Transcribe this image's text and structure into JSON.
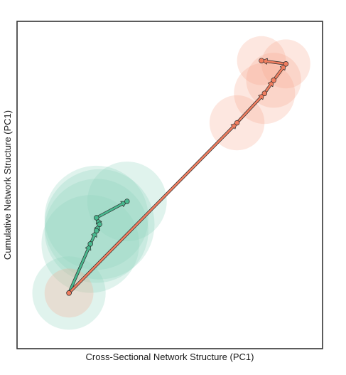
{
  "chart_data": {
    "type": "scatter",
    "xlabel": "Cross-Sectional Network Structure (PC1)",
    "ylabel": "Cumulative Network Structure (PC1)",
    "xlim": [
      0,
      100
    ],
    "ylim": [
      0,
      100
    ],
    "grid": false,
    "series": [
      {
        "color": "#2aa884",
        "halo_color": "#8fd3bd",
        "point_fill": "#49b98f",
        "x": [
          17,
          24,
          26,
          27,
          26,
          36
        ],
        "y": [
          17,
          32,
          36,
          38,
          40,
          45
        ],
        "halo_radius": [
          12,
          16,
          17,
          18,
          17,
          13
        ]
      },
      {
        "color": "#e06a4a",
        "halo_color": "#f8a98f",
        "point_fill": "#f07e60",
        "x": [
          17,
          72,
          81,
          84,
          88,
          80
        ],
        "y": [
          17,
          69,
          78,
          82,
          87,
          88
        ],
        "halo_radius": [
          8,
          9,
          10,
          9,
          8,
          8
        ]
      }
    ]
  }
}
